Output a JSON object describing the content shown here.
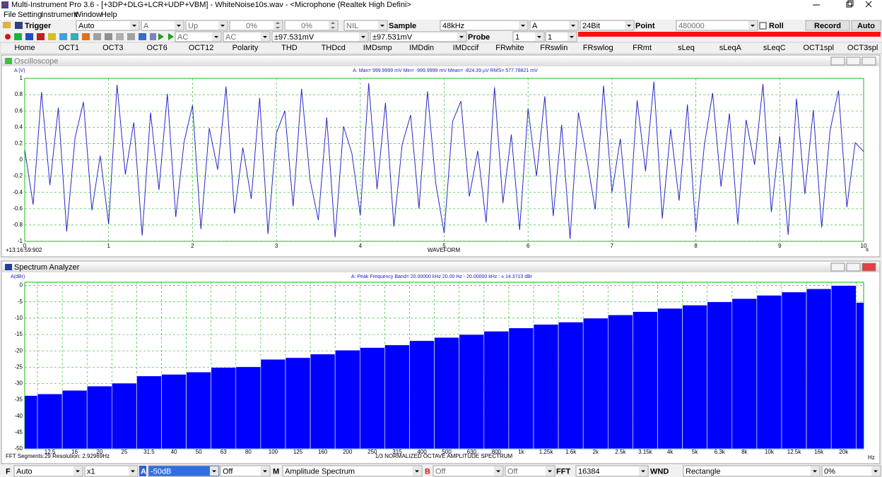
{
  "window": {
    "title": "Multi-Instrument Pro 3.6  -  [+3DP+DLG+LCR+UDP+VBM]  -  WhiteNoise10s.wav  -  <Microphone (Realtek High Defini>"
  },
  "menu": [
    "File",
    "Setting",
    "Instrument",
    "Window",
    "Help"
  ],
  "toolbar1": [
    "Trigger",
    "Auto",
    "A",
    "Up",
    "0%",
    "0%",
    "NIL",
    "Sample",
    "48kHz",
    "A",
    "24Bit",
    "Point",
    "480000",
    "Roll",
    "Record",
    "Auto"
  ],
  "toolbar2": [
    "AC",
    "AC",
    "±97.531mV",
    "±97.531mV",
    "Probe",
    "1",
    "1"
  ],
  "tabs": [
    "Home",
    "OCT1",
    "OCT3",
    "OCT6",
    "OCT12",
    "Polarity",
    "THD",
    "THDcd",
    "IMDsmp",
    "IMDdin",
    "IMDccif",
    "FRwhite",
    "FRswlin",
    "FRswlog",
    "FRmt",
    "sLeq",
    "sLeqA",
    "sLeqC",
    "OCT1spl",
    "OCT3spl"
  ],
  "chart_data": [
    {
      "type": "line",
      "window_title": "Oscilloscope",
      "ylabel": "A (V)",
      "info": "A: Max=     999.9999  mV  Min=     -999.9999  mV  Mean=      -824.39  µV  RMS=     577.78821  mV",
      "timestamp": "+13:16:59:902",
      "xlabel": "WAVEFORM",
      "xunit": "s",
      "color": "#2828c8",
      "grid": true,
      "xlim": [
        0,
        10
      ],
      "xticks": [
        0,
        1,
        2,
        3,
        4,
        5,
        6,
        7,
        8,
        9,
        10
      ],
      "ylim": [
        -1,
        1
      ],
      "yticks": [
        -1,
        -0.8,
        -0.6,
        -0.4,
        -0.2,
        0,
        0.2,
        0.4,
        0.6,
        0.8,
        1
      ],
      "x": [
        0,
        0.1,
        0.2,
        0.3,
        0.4,
        0.5,
        0.6,
        0.7,
        0.8,
        0.9,
        1,
        1.1,
        1.2,
        1.3,
        1.4,
        1.5,
        1.6,
        1.7,
        1.8,
        1.9,
        2,
        2.1,
        2.2,
        2.3,
        2.4,
        2.5,
        2.6,
        2.7,
        2.8,
        2.9,
        3,
        3.1,
        3.2,
        3.3,
        3.4,
        3.5,
        3.6,
        3.7,
        3.8,
        3.9,
        4,
        4.1,
        4.2,
        4.3,
        4.4,
        4.5,
        4.6,
        4.7,
        4.8,
        4.9,
        5,
        5.1,
        5.2,
        5.3,
        5.4,
        5.5,
        5.6,
        5.7,
        5.8,
        5.9,
        6,
        6.1,
        6.2,
        6.3,
        6.4,
        6.5,
        6.6,
        6.7,
        6.8,
        6.9,
        7,
        7.1,
        7.2,
        7.3,
        7.4,
        7.5,
        7.6,
        7.7,
        7.8,
        7.9,
        8,
        8.1,
        8.2,
        8.3,
        8.4,
        8.5,
        8.6,
        8.7,
        8.8,
        8.9,
        9,
        9.1,
        9.2,
        9.3,
        9.4,
        9.5,
        9.6,
        9.7,
        9.8,
        9.9,
        10
      ],
      "values": [
        0.12,
        -0.55,
        0.83,
        -0.31,
        0.64,
        -0.88,
        0.27,
        0.71,
        -0.62,
        0.05,
        -0.79,
        0.92,
        -0.18,
        0.46,
        -0.93,
        0.58,
        -0.37,
        0.81,
        -0.7,
        0.22,
        0.67,
        -0.85,
        0.39,
        -0.12,
        0.9,
        -0.66,
        0.15,
        -0.48,
        0.76,
        -0.91,
        0.33,
        0.6,
        -0.57,
        0.87,
        -0.24,
        -0.74,
        0.52,
        -0.95,
        0.41,
        0.08,
        -0.68,
        0.94,
        -0.36,
        0.7,
        -0.82,
        0.19,
        0.55,
        -0.6,
        0.84,
        -0.29,
        -0.9,
        0.47,
        0.72,
        -0.45,
        0.11,
        -0.77,
        0.89,
        -0.53,
        0.31,
        -0.86,
        0.63,
        -0.2,
        0.78,
        -0.69,
        0.43,
        -0.97,
        0.58,
        0.02,
        -0.61,
        0.91,
        -0.4,
        0.26,
        -0.84,
        0.73,
        -0.14,
        0.96,
        -0.72,
        0.38,
        -0.5,
        0.68,
        -0.88,
        0.17,
        0.82,
        -0.33,
        0.57,
        -0.79,
        0.49,
        -0.06,
        0.93,
        -0.64,
        0.29,
        -0.92,
        0.75,
        -0.42,
        0.61,
        -0.83,
        0.36,
        0.85,
        -0.58,
        0.21,
        0.1
      ]
    },
    {
      "type": "bar",
      "window_title": "Spectrum Analyzer",
      "ylabel": "A(dBr)",
      "info": "A: Peak Frequency Band= 20.00000  kHz        20.00   Hz  -  20.00000  kHz : ± 14.3713  dBr",
      "footer": "FFT Segments:29    Resolution: 2.92969Hz",
      "xlabel": "1/3 NORMALIZED OCTAVE AMPLITUDE SPECTRUM",
      "xunit": "Hz",
      "color": "#0000ff",
      "grid": true,
      "ylim": [
        -50,
        1
      ],
      "yticks": [
        -50,
        -45,
        -40,
        -35,
        -30,
        -25,
        -20,
        -15,
        -10,
        -5,
        0
      ],
      "categories": [
        null,
        "12.5",
        "16",
        "20",
        "25",
        "31.5",
        "40",
        "50",
        "63",
        "80",
        "100",
        "125",
        "160",
        "200",
        "250",
        "315",
        "400",
        "500",
        "630",
        "800",
        "1k",
        "1.25k",
        "1.6k",
        "2k",
        "2.5k",
        "3.15k",
        "4k",
        "5k",
        "6.3k",
        "8k",
        "10k",
        "12.5k",
        "16k",
        "20k",
        null
      ],
      "values": [
        -33.7,
        -33.2,
        -32.1,
        -30.8,
        -29.9,
        -27.7,
        -27.2,
        -26.5,
        -25.1,
        -24.9,
        -22.6,
        -22.1,
        -21,
        -19.8,
        -19,
        -18.2,
        -16.9,
        -15.9,
        -15,
        -14,
        -13,
        -11.9,
        -11.2,
        -10,
        -9,
        -8,
        -7,
        -6,
        -5,
        -4,
        -3,
        -2,
        -1,
        0,
        -5.2
      ]
    }
  ],
  "bottom_bar": [
    "F",
    "Auto",
    "x1",
    "A",
    "-50dB",
    "Off",
    "M",
    "Amplitude Spectrum",
    "B",
    "Off",
    "Off",
    "FFT",
    "16384",
    "WND",
    "Rectangle",
    "0%"
  ]
}
